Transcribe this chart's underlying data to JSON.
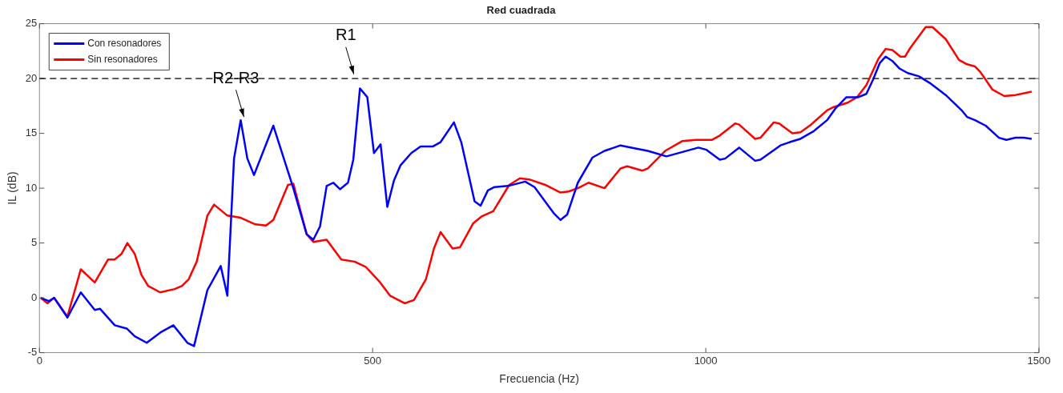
{
  "chart_data": {
    "type": "line",
    "title": "Red cuadrada",
    "xlabel": "Frecuencia (Hz)",
    "ylabel": "IL (dB)",
    "xlim": [
      0,
      1500
    ],
    "xticks": [
      0,
      500,
      1000,
      1500
    ],
    "ylim": [
      -5,
      25
    ],
    "yticks": [
      -5,
      0,
      5,
      10,
      15,
      20,
      25
    ],
    "grid": false,
    "legend": "top left",
    "marker": "none",
    "line_style": "solid",
    "ref_lines": [
      {
        "axis": "y",
        "value": 20,
        "color": "#000000",
        "line_style": "dashed"
      }
    ],
    "annotations": [
      {
        "text": "R2-R3",
        "x": 302,
        "y": 16.2
      },
      {
        "text": "R1",
        "x": 467,
        "y": 20.1
      }
    ],
    "series": [
      {
        "name": "Con resonadores",
        "color": "#0000ff",
        "x": [
          2,
          14,
          22,
          42,
          62,
          83,
          91,
          113,
          131,
          143,
          161,
          183,
          201,
          222,
          232,
          252,
          272,
          282,
          292,
          302,
          312,
          322,
          351,
          381,
          401,
          411,
          421,
          431,
          441,
          451,
          463,
          471,
          481,
          492,
          502,
          512,
          522,
          532,
          542,
          558,
          572,
          590,
          602,
          622,
          633,
          653,
          662,
          673,
          683,
          703,
          729,
          743,
          772,
          782,
          792,
          808,
          830,
          848,
          872,
          896,
          913,
          941,
          965,
          989,
          1001,
          1021,
          1029,
          1050,
          1074,
          1082,
          1112,
          1126,
          1142,
          1162,
          1182,
          1195,
          1211,
          1229,
          1241,
          1251,
          1261,
          1270,
          1280,
          1291,
          1303,
          1320,
          1336,
          1360,
          1384,
          1392,
          1404,
          1420,
          1440,
          1451,
          1465,
          1477,
          1489
        ],
        "values": [
          0,
          -0.3,
          0,
          -1.8,
          0.5,
          -1.1,
          -1.0,
          -2.5,
          -2.8,
          -3.5,
          -4.1,
          -3.1,
          -2.5,
          -4.1,
          -4.4,
          0.7,
          2.9,
          0.2,
          12.7,
          16.2,
          12.7,
          11.2,
          15.7,
          10.0,
          5.8,
          5.3,
          6.5,
          10.2,
          10.5,
          9.9,
          10.5,
          12.6,
          19.1,
          18.3,
          13.2,
          14.0,
          8.3,
          10.7,
          12.1,
          13.2,
          13.8,
          13.8,
          14.2,
          16.0,
          14.2,
          8.8,
          8.4,
          9.8,
          10.1,
          10.2,
          10.6,
          10.1,
          7.7,
          7.1,
          7.6,
          10.5,
          12.8,
          13.4,
          13.9,
          13.6,
          13.4,
          12.9,
          13.3,
          13.7,
          13.5,
          12.6,
          12.7,
          13.7,
          12.5,
          12.6,
          13.9,
          14.2,
          14.5,
          15.2,
          16.2,
          17.3,
          18.3,
          18.3,
          18.6,
          19.9,
          21.4,
          22.0,
          21.6,
          20.9,
          20.5,
          20.2,
          19.6,
          18.5,
          17.1,
          16.5,
          16.2,
          15.7,
          14.6,
          14.4,
          14.6,
          14.6,
          14.5
        ]
      },
      {
        "name": "Sin resonadores",
        "color": "#ff0000",
        "x": [
          2,
          12,
          22,
          42,
          62,
          83,
          103,
          113,
          123,
          132,
          143,
          153,
          163,
          181,
          203,
          214,
          224,
          236,
          252,
          262,
          282,
          302,
          324,
          340,
          351,
          373,
          381,
          401,
          411,
          431,
          453,
          473,
          490,
          510,
          526,
          548,
          562,
          580,
          592,
          602,
          620,
          631,
          651,
          663,
          681,
          705,
          721,
          735,
          759,
          782,
          794,
          808,
          824,
          848,
          872,
          882,
          905,
          913,
          939,
          965,
          985,
          1009,
          1021,
          1044,
          1050,
          1074,
          1082,
          1102,
          1110,
          1130,
          1142,
          1158,
          1182,
          1192,
          1213,
          1227,
          1241,
          1259,
          1270,
          1280,
          1292,
          1299,
          1307,
          1330,
          1340,
          1360,
          1380,
          1392,
          1404,
          1412,
          1430,
          1448,
          1465,
          1489
        ],
        "values": [
          0,
          -0.5,
          0,
          -1.7,
          2.6,
          1.4,
          3.5,
          3.5,
          4.0,
          5.0,
          4.0,
          2.1,
          1.1,
          0.5,
          0.8,
          1.1,
          1.7,
          3.3,
          7.5,
          8.5,
          7.5,
          7.3,
          6.7,
          6.6,
          7.1,
          10.3,
          10.4,
          5.8,
          5.1,
          5.3,
          3.5,
          3.3,
          2.8,
          1.5,
          0.2,
          -0.5,
          -0.2,
          1.7,
          4.5,
          6.0,
          4.5,
          4.6,
          6.8,
          7.4,
          7.9,
          10.3,
          10.9,
          10.8,
          10.3,
          9.6,
          9.7,
          10.0,
          10.5,
          10.0,
          11.8,
          12.0,
          11.6,
          11.8,
          13.4,
          14.3,
          14.4,
          14.4,
          14.8,
          15.9,
          15.8,
          14.5,
          14.6,
          16.0,
          15.9,
          15.0,
          15.1,
          15.8,
          17.1,
          17.4,
          17.8,
          18.3,
          19.4,
          21.8,
          22.7,
          22.6,
          22.0,
          22.0,
          22.8,
          24.7,
          24.7,
          23.6,
          21.7,
          21.3,
          21.1,
          20.6,
          19.0,
          18.4,
          18.5,
          18.8
        ]
      }
    ]
  }
}
